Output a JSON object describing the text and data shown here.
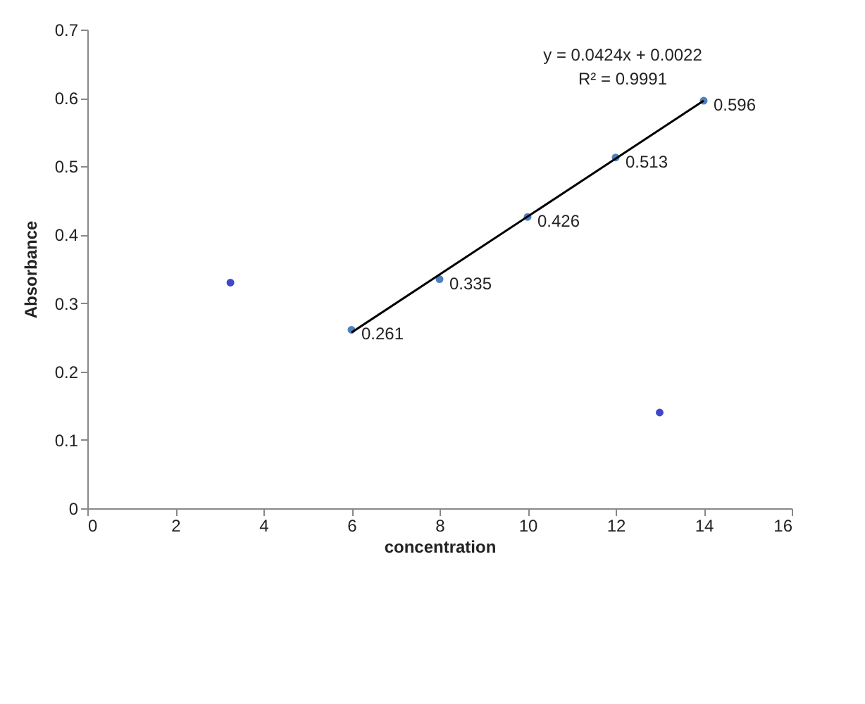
{
  "chart_data": {
    "type": "scatter",
    "xlabel": "concentration",
    "ylabel": "Absorbance",
    "xlim": [
      0,
      16
    ],
    "xticks": [
      0,
      2,
      4,
      6,
      8,
      10,
      12,
      14,
      16
    ],
    "ylim": [
      0,
      0.7
    ],
    "yticks": [
      {
        "value": 0,
        "label": "0"
      },
      0.1,
      0.2,
      0.3,
      0.4,
      0.5,
      0.6,
      0.7
    ],
    "grid": false,
    "series": [
      {
        "color": "#4f81bd",
        "marker": "circle",
        "x": [
          6,
          8,
          10,
          12,
          14
        ],
        "values": [
          0.261,
          0.335,
          0.426,
          0.513,
          0.596
        ],
        "value_labels": [
          "0.261",
          "0.335",
          "0.426",
          "0.513",
          "0.596"
        ]
      },
      {
        "color": "#3f48cc",
        "marker": "circle",
        "x": [
          3.25,
          13
        ],
        "values": [
          0.33,
          0.14
        ]
      },
      {
        "type": "line",
        "marker": "none",
        "color": "#000000",
        "x": [
          6,
          14
        ],
        "values": [
          0.257,
          0.596
        ],
        "line_style": "solid"
      }
    ],
    "annotations": [
      "y = 0.0424x + 0.0022",
      "R² = 0.9991"
    ]
  }
}
